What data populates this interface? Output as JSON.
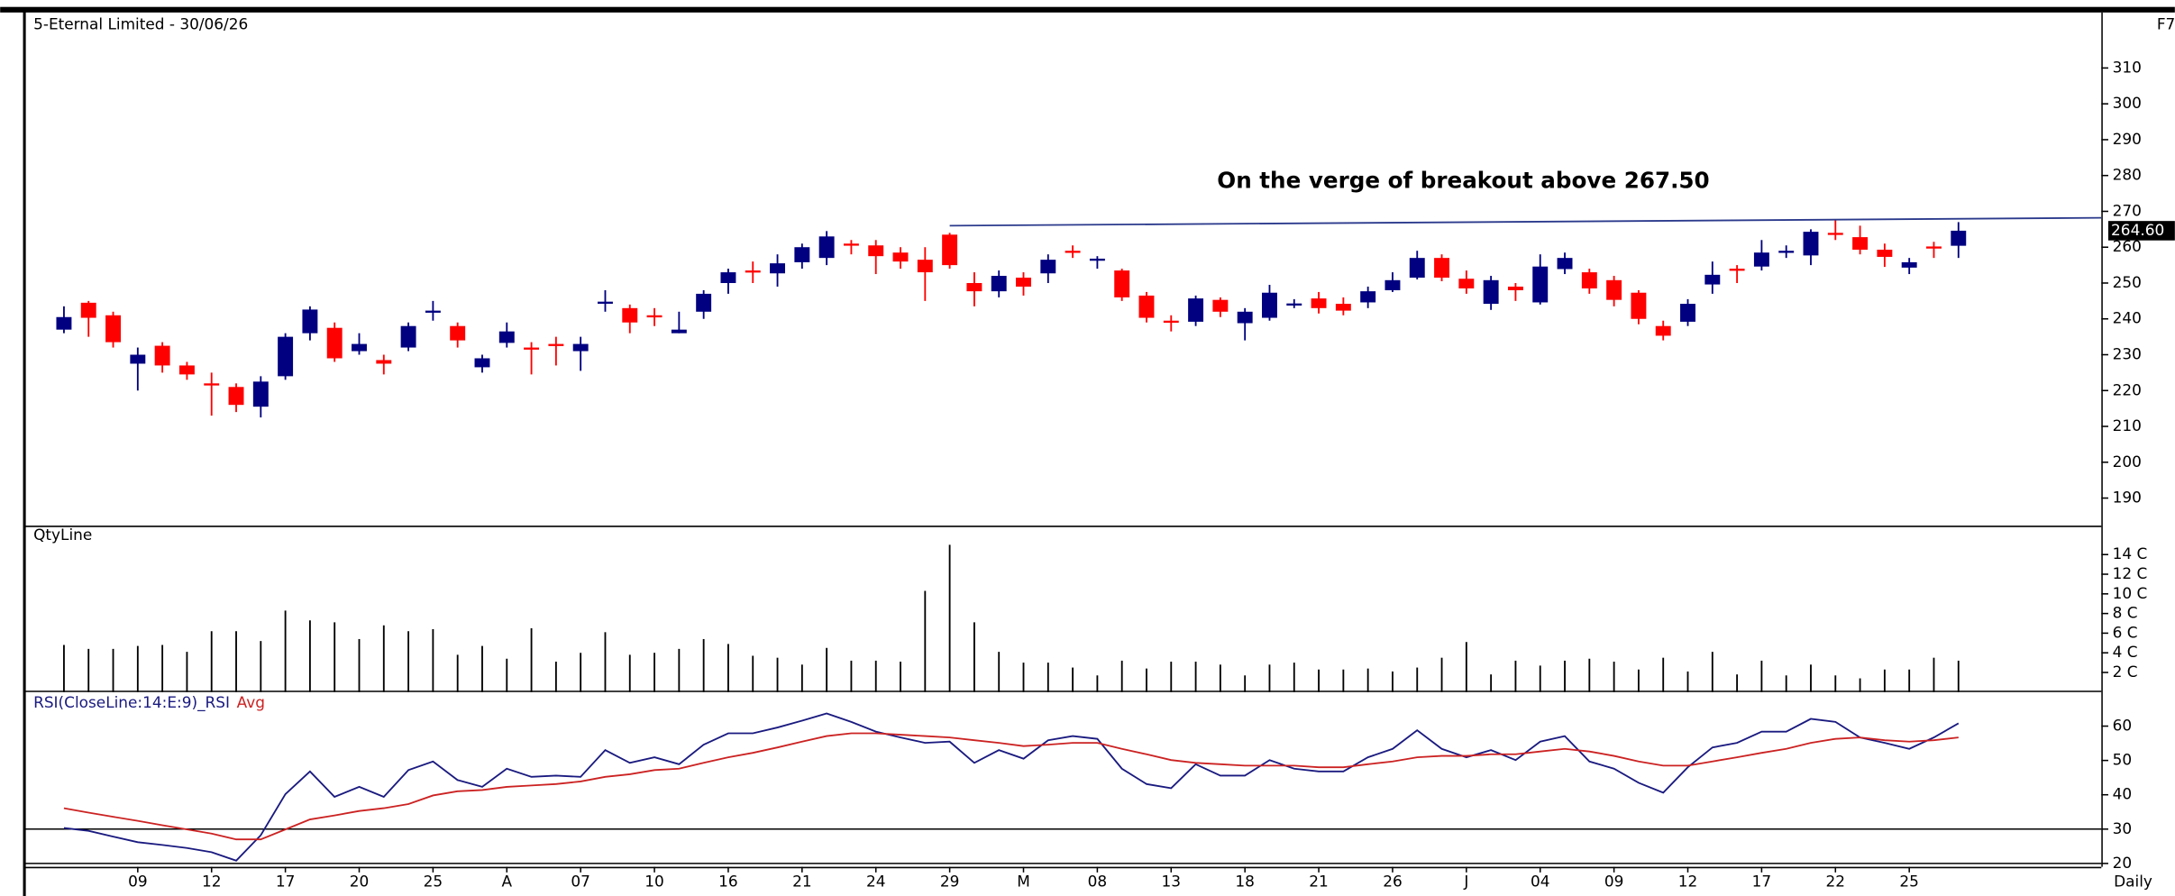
{
  "chart_data": [
    {
      "type": "candlestick",
      "title": "5-Eternal Limited - 30/06/26",
      "corner_label": "F7",
      "timeframe": "Daily",
      "annotation": "On the verge of breakout above 267.50",
      "last_price_label": "264.60",
      "colors": {
        "up": "#000080",
        "down": "#ff0000"
      },
      "categories": [
        null,
        null,
        null,
        "09",
        null,
        null,
        "12",
        null,
        null,
        "17",
        null,
        null,
        "20",
        null,
        null,
        "25",
        null,
        null,
        "A",
        null,
        null,
        "07",
        null,
        null,
        "10",
        null,
        null,
        "16",
        null,
        null,
        "21",
        null,
        null,
        "24",
        null,
        null,
        "29",
        null,
        null,
        "M",
        null,
        null,
        "08",
        null,
        null,
        "13",
        null,
        null,
        "18",
        null,
        null,
        "21",
        null,
        null,
        "26",
        null,
        null,
        "J",
        null,
        null,
        "04",
        null,
        null,
        "09",
        null,
        null,
        "12",
        null,
        null,
        "17",
        null,
        null,
        "22",
        null,
        null,
        "25",
        null,
        null
      ],
      "open": [
        237,
        244.5,
        241,
        227.5,
        232.5,
        227,
        222,
        221,
        215.5,
        224,
        236,
        237.5,
        231,
        228.5,
        232,
        242,
        238,
        226.5,
        233.3,
        232,
        233,
        231,
        244.5,
        243,
        241,
        236,
        242,
        250,
        253.5,
        252.7,
        255.8,
        257,
        261,
        260.5,
        258.5,
        256.5,
        263.5,
        250,
        247.7,
        251.5,
        252.7,
        259,
        256.4,
        253.5,
        246.5,
        239.5,
        239.2,
        245.3,
        238.8,
        240.3,
        244.1,
        245.7,
        244.2,
        244.6,
        248,
        251.5,
        257,
        251.2,
        244.2,
        249,
        244.6,
        253.9,
        253,
        250.8,
        247.3,
        238,
        239.2,
        249.6,
        254,
        254.6,
        258.8,
        257.7,
        264,
        262.8,
        259.3,
        254.3,
        260.2,
        260.4
      ],
      "high": [
        243.5,
        245,
        242,
        232,
        233.5,
        228,
        225,
        222,
        224,
        236,
        243.5,
        239,
        236,
        230,
        239,
        245,
        239,
        230,
        239,
        233.5,
        235,
        235,
        248,
        244,
        243,
        242,
        248,
        254,
        256,
        258,
        261,
        264.5,
        262,
        262,
        260,
        260,
        264,
        253,
        253.5,
        253,
        258,
        260.5,
        257.5,
        254,
        247.5,
        241,
        246.5,
        246,
        243,
        249.5,
        245.5,
        247.5,
        246,
        249,
        253,
        259,
        258,
        253.5,
        252,
        250,
        258,
        258.5,
        254,
        252,
        248,
        239.5,
        245.5,
        256,
        255,
        262,
        260.5,
        265,
        267.5,
        266,
        261,
        257,
        261.5,
        267
      ],
      "low": [
        236,
        235,
        232,
        220,
        225,
        223,
        213,
        214,
        212.5,
        223,
        234,
        228,
        230,
        224.5,
        231,
        239.5,
        232,
        225,
        232,
        224.5,
        227,
        225.5,
        242,
        236,
        238,
        236,
        240,
        247,
        250,
        249,
        254,
        255,
        258,
        252.5,
        254,
        245,
        254,
        243.5,
        246,
        246.5,
        250,
        257,
        254,
        245,
        239,
        236.5,
        238,
        240.5,
        234,
        239.5,
        243,
        241.5,
        241,
        243,
        247.5,
        251,
        250.5,
        247,
        242.5,
        245,
        244,
        252.5,
        247,
        243.5,
        238.5,
        234,
        238,
        247,
        250,
        253.5,
        257,
        255,
        262,
        258,
        254.5,
        252.5,
        257,
        257
      ],
      "close": [
        240.5,
        240.3,
        233.5,
        230,
        227,
        224.5,
        221.5,
        216,
        222.5,
        235,
        242.6,
        229,
        233,
        227.5,
        238,
        242.3,
        234,
        229,
        236.5,
        231.7,
        232.5,
        233,
        244.8,
        239,
        240.5,
        237,
        247,
        253,
        253,
        255.5,
        260,
        263,
        260.5,
        257.5,
        256,
        253,
        255,
        247.7,
        252,
        249,
        256.5,
        258.5,
        256.8,
        246,
        240.3,
        239,
        245.7,
        242,
        242,
        247.3,
        244.3,
        243,
        242.3,
        247.7,
        250.8,
        257,
        251.5,
        248.5,
        250.8,
        248,
        254.6,
        257,
        248.5,
        245.3,
        240,
        235.3,
        244.2,
        252.3,
        253.8,
        258.5,
        259,
        264.3,
        263.8,
        259.3,
        257.3,
        255.8,
        259.8,
        264.6
      ],
      "trendline": {
        "x": [
          36,
          82.8
        ],
        "values": [
          266,
          268.2
        ],
        "color": "#2b3a8c"
      },
      "ylim": [
        182.3,
        325.1
      ],
      "yticks": [
        190,
        200,
        210,
        220,
        230,
        240,
        250,
        260,
        270,
        280,
        290,
        300,
        310
      ]
    },
    {
      "type": "bar",
      "title": "QtyLine",
      "color": "#000000",
      "values": [
        4.8,
        4.4,
        4.4,
        4.7,
        4.8,
        4.1,
        6.2,
        6.2,
        5.2,
        8.3,
        7.3,
        7.1,
        5.4,
        6.8,
        6.2,
        6.4,
        3.8,
        4.7,
        3.4,
        6.5,
        3.1,
        4.0,
        6.1,
        3.8,
        4.0,
        4.4,
        5.4,
        4.9,
        3.7,
        3.5,
        2.8,
        4.5,
        3.2,
        3.2,
        3.1,
        10.3,
        15.0,
        7.1,
        4.1,
        3.0,
        3.0,
        2.5,
        1.7,
        3.2,
        2.4,
        3.1,
        3.1,
        2.8,
        1.7,
        2.8,
        3.0,
        2.3,
        2.3,
        2.4,
        2.1,
        2.5,
        3.5,
        5.1,
        1.8,
        3.2,
        2.7,
        3.2,
        3.4,
        3.1,
        2.3,
        3.5,
        2.1,
        4.1,
        1.8,
        3.2,
        1.7,
        2.8,
        1.7,
        1.4,
        2.3,
        2.3,
        3.5,
        3.2
      ],
      "ylim": [
        0,
        16.8
      ],
      "yticks": [
        {
          "value": 2,
          "label": "2 C"
        },
        {
          "value": 4,
          "label": "4 C"
        },
        {
          "value": 6,
          "label": "6 C"
        },
        {
          "value": 8,
          "label": "8 C"
        },
        {
          "value": 10,
          "label": "10 C"
        },
        {
          "value": 12,
          "label": "12 C"
        },
        {
          "value": 14,
          "label": "14 C"
        }
      ]
    },
    {
      "type": "line",
      "title": "RSI(CloseLine:14:E:9)_",
      "series": [
        {
          "name": "RSI",
          "color": "#1a1a80",
          "values": [
            30.3,
            29.5,
            27.8,
            26.2,
            25.4,
            24.5,
            23.3,
            20.8,
            28.2,
            40.2,
            46.8,
            39.4,
            42.3,
            39.4,
            47.2,
            49.7,
            44.3,
            42.3,
            47.6,
            45.2,
            45.6,
            45.2,
            53,
            49.3,
            50.9,
            48.9,
            54.6,
            57.9,
            57.9,
            59.6,
            61.6,
            63.7,
            61.2,
            58.4,
            56.7,
            55.1,
            55.5,
            49.3,
            53,
            50.5,
            55.9,
            57.1,
            56.3,
            47.6,
            43.1,
            41.9,
            48.9,
            45.6,
            45.6,
            50.1,
            47.6,
            46.8,
            46.8,
            50.9,
            53.4,
            58.8,
            53.4,
            50.9,
            53,
            50.1,
            55.5,
            57.1,
            49.7,
            47.6,
            43.5,
            40.6,
            48,
            53.8,
            55.1,
            58.4,
            58.4,
            62.1,
            61.2,
            56.7,
            55.1,
            53.4,
            56.7,
            60.8
          ]
        },
        {
          "name": "Avg",
          "color": "#cc2222",
          "values": [
            36.1,
            34.8,
            33.6,
            32.4,
            31.1,
            29.9,
            28.7,
            27,
            27,
            29.9,
            32.8,
            34,
            35.3,
            36.1,
            37.3,
            39.8,
            41,
            41.4,
            42.3,
            42.7,
            43.1,
            43.9,
            45.2,
            46,
            47.2,
            47.6,
            49.3,
            50.9,
            52.2,
            53.8,
            55.5,
            57.1,
            57.9,
            57.9,
            57.5,
            57.1,
            56.7,
            55.9,
            55.1,
            54.2,
            54.6,
            55.1,
            55.1,
            53.4,
            51.8,
            50.1,
            49.3,
            48.9,
            48.5,
            48.5,
            48.5,
            48,
            48,
            48.9,
            49.7,
            50.9,
            51.3,
            51.3,
            51.8,
            51.8,
            52.6,
            53.4,
            52.6,
            51.3,
            49.7,
            48.5,
            48.5,
            49.7,
            50.9,
            52.2,
            53.4,
            55.1,
            56.3,
            56.7,
            55.9,
            55.5,
            55.9,
            56.7
          ]
        }
      ],
      "levels": [
        30,
        20
      ],
      "ylim": [
        19,
        69.5
      ],
      "yticks": [
        20,
        30,
        40,
        50,
        60
      ]
    }
  ]
}
